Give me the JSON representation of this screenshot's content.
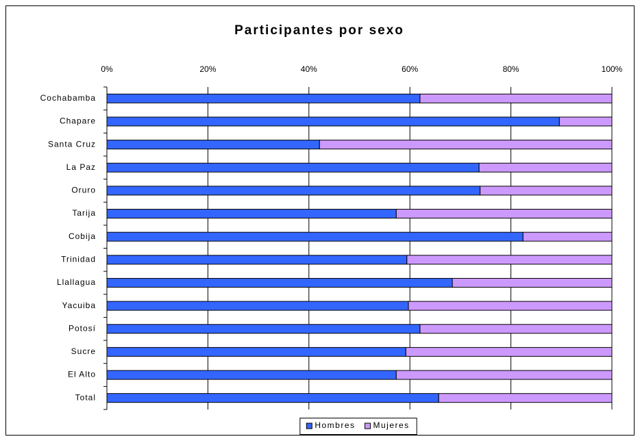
{
  "chart_data": {
    "type": "stacked_bar_horizontal",
    "title": "Participantes por sexo",
    "categories": [
      "Cochabamba",
      "Chapare",
      "Santa Cruz",
      "La Paz",
      "Oruro",
      "Tarija",
      "Cobija",
      "Trinidad",
      "Llallagua",
      "Yacuiba",
      "Potosí",
      "Sucre",
      "El Alto",
      "Total"
    ],
    "series": [
      {
        "name": "Hombres",
        "color": "#3366ff",
        "values": [
          62.0,
          89.6,
          42.1,
          73.7,
          73.9,
          57.3,
          82.4,
          59.4,
          68.4,
          59.7,
          62.0,
          59.2,
          57.3,
          65.7
        ]
      },
      {
        "name": "Mujeres",
        "color": "#cc99ff",
        "values": [
          38.0,
          10.4,
          57.9,
          26.3,
          26.1,
          42.7,
          17.6,
          40.6,
          31.6,
          40.3,
          38.0,
          40.8,
          42.7,
          34.3
        ]
      }
    ],
    "xlim": [
      0,
      100
    ],
    "xticks": [
      {
        "value": 0,
        "label": "0%"
      },
      {
        "value": 20,
        "label": "20%"
      },
      {
        "value": 40,
        "label": "40%"
      },
      {
        "value": 60,
        "label": "60%"
      },
      {
        "value": 80,
        "label": "80%"
      },
      {
        "value": 100,
        "label": "100%"
      }
    ],
    "grid": true,
    "legend": "bottom"
  }
}
